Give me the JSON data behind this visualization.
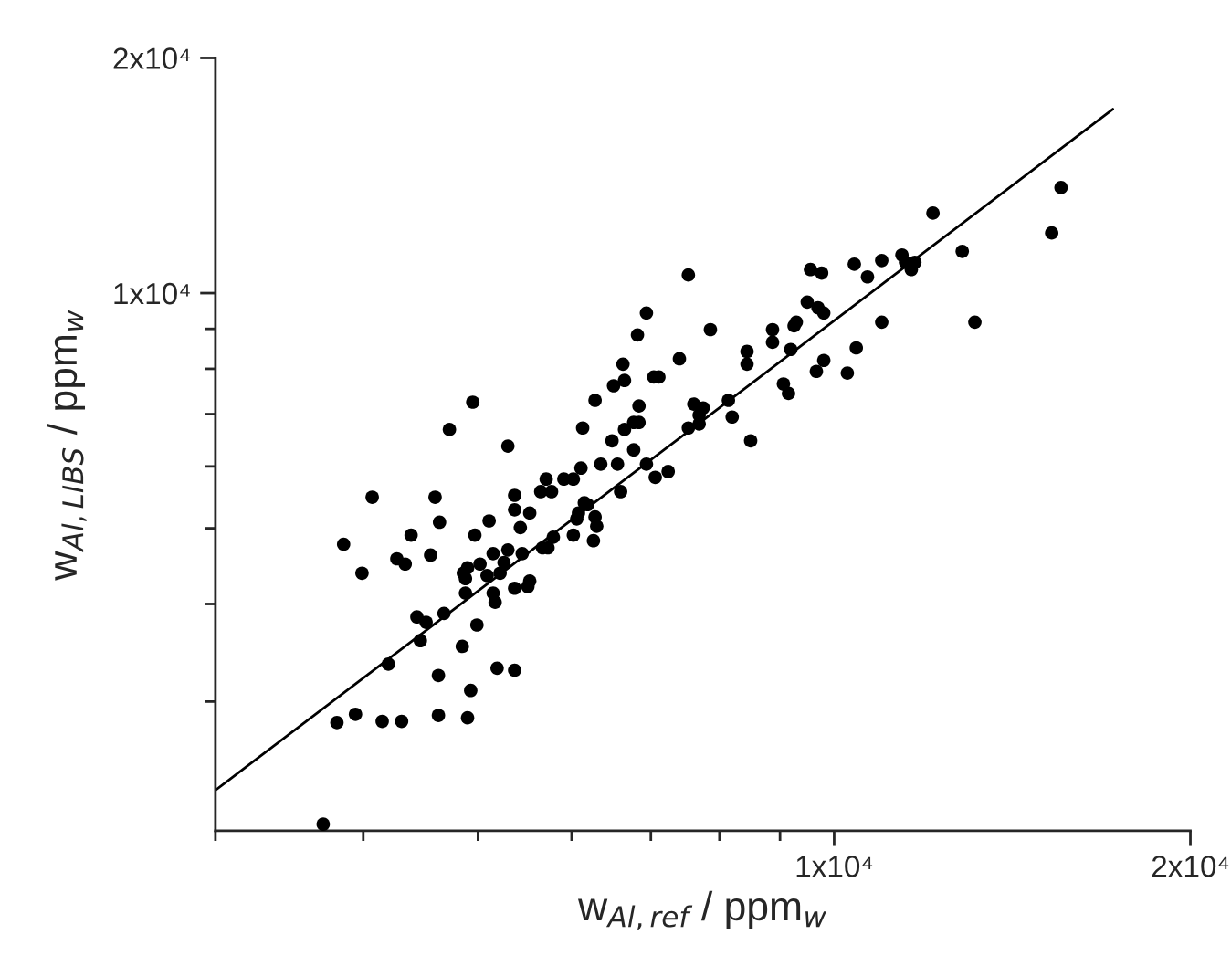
{
  "chart_data": {
    "type": "scatter",
    "xlabel": "w$_{Al,ref}$ / ppm$_{w}$",
    "ylabel": "w$_{Al,LIBS}$ / ppm$_{w}$",
    "log": "xy",
    "grid": false,
    "legend": false,
    "xlim": [
      3000,
      20000
    ],
    "ylim": [
      2050,
      20000
    ],
    "xticks": [
      {
        "value": 10000,
        "label": "1x10⁴"
      },
      {
        "value": 20000,
        "label": "2x10⁴"
      }
    ],
    "yticks": [
      {
        "value": 10000,
        "label": "1x10⁴"
      },
      {
        "value": 20000,
        "label": "2x10⁴"
      }
    ],
    "series": [
      {
        "color": "#000000",
        "marker": "circle",
        "x": [
          6940,
          6820,
          7860,
          7400,
          6630,
          6650,
          6510,
          7040,
          7110,
          4950,
          6280,
          6840,
          8140,
          4730,
          6130,
          6650,
          6770,
          6840,
          7530,
          7690,
          5300,
          6770,
          6490,
          6350,
          6560,
          6940,
          6110,
          6020,
          5910,
          5710,
          5650,
          5770,
          5370,
          6600,
          7060,
          7240,
          4070,
          4600,
          6150,
          6190,
          5370,
          5530,
          6080,
          6060,
          6280,
          6300,
          4640,
          5110,
          5430,
          4970,
          4390,
          5790,
          6020,
          6260,
          3850,
          5730,
          5670,
          4270,
          4340,
          4560,
          5300,
          5450,
          5150,
          3990,
          5020,
          4900,
          4860,
          4880,
          5220,
          5090,
          5260,
          5530,
          5510,
          5370,
          4880,
          5150,
          5170,
          4440,
          4520,
          4680,
          4470,
          4990,
          4850,
          4200,
          4630,
          5190,
          5370,
          4930,
          3940,
          3800,
          4150,
          4310,
          4630,
          4900,
          3700,
          7530,
          9550,
          9760,
          9490,
          9690,
          9800,
          9290,
          10400,
          10670,
          10970,
          11410,
          11490,
          11700,
          11620,
          12120,
          12830,
          10970,
          13150,
          15270,
          15550,
          8870,
          9250,
          8440,
          8870,
          9190,
          8440,
          10440,
          9800,
          9660,
          10260,
          9060,
          9150,
          7610,
          7750,
          7690,
          8200,
          8500
        ],
        "values": [
          9430,
          8840,
          8980,
          8240,
          8110,
          7730,
          7610,
          7810,
          7810,
          7250,
          7290,
          7170,
          7290,
          6690,
          6720,
          6690,
          6830,
          6830,
          6720,
          6800,
          6370,
          6300,
          6470,
          6040,
          6040,
          6040,
          5970,
          5780,
          5780,
          5780,
          5570,
          5570,
          5510,
          5570,
          5810,
          5910,
          5480,
          5480,
          5390,
          5360,
          5280,
          5230,
          5230,
          5140,
          5170,
          5030,
          5090,
          5110,
          5010,
          4900,
          4900,
          4870,
          4900,
          4820,
          4770,
          4720,
          4720,
          4570,
          4500,
          4620,
          4690,
          4640,
          4640,
          4380,
          4500,
          4450,
          4380,
          4310,
          4380,
          4350,
          4520,
          4280,
          4210,
          4190,
          4130,
          4130,
          4020,
          3850,
          3790,
          3890,
          3590,
          3760,
          3530,
          3350,
          3240,
          3310,
          3290,
          3100,
          2890,
          2820,
          2830,
          2830,
          2880,
          2860,
          2090,
          10550,
          10720,
          10610,
          9740,
          9580,
          9430,
          9180,
          10890,
          10490,
          11010,
          11190,
          10950,
          10950,
          10720,
          12660,
          11310,
          9180,
          9180,
          11940,
          13650,
          8980,
          9080,
          8420,
          8650,
          8470,
          8110,
          8510,
          8200,
          7940,
          7900,
          7650,
          7440,
          7210,
          7130,
          6980,
          6940,
          6470
        ]
      },
      {
        "type": "line",
        "color": "#000000",
        "x": [
          3000,
          17200
        ],
        "values": [
          2310,
          17200
        ]
      }
    ]
  }
}
